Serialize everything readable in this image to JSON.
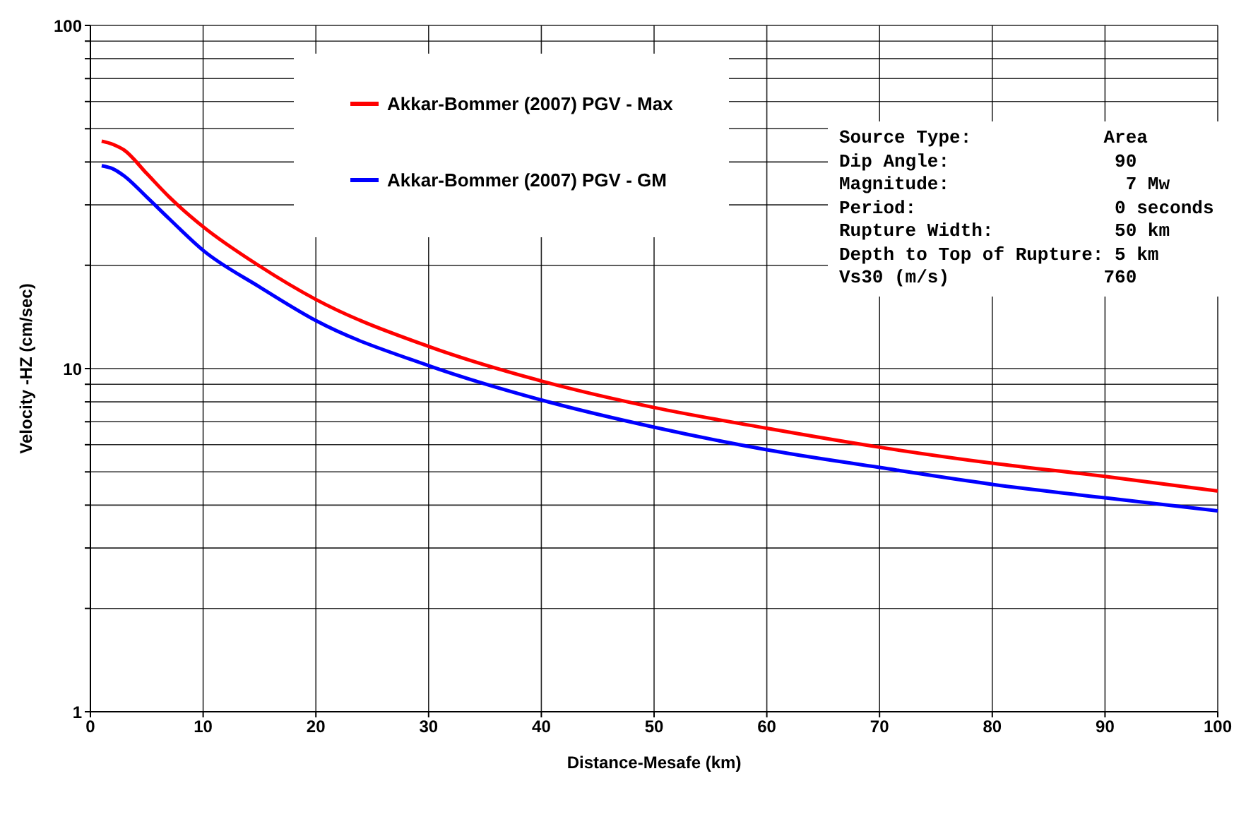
{
  "chart_data": {
    "type": "line",
    "xlabel": "Distance-Mesafe (km)",
    "ylabel": "Velocity -HZ (cm/sec)",
    "x": [
      1,
      2,
      3,
      5,
      7,
      10,
      15,
      20,
      30,
      40,
      50,
      60,
      70,
      80,
      90,
      100
    ],
    "series": [
      {
        "name": "Akkar-Bommer (2007) PGV - Max",
        "color": "#ff0000",
        "values": [
          46,
          45,
          43.3,
          37,
          31.6,
          25.9,
          19.9,
          15.9,
          11.6,
          9.2,
          7.7,
          6.7,
          5.9,
          5.3,
          4.85,
          4.4
        ]
      },
      {
        "name": "Akkar-Bommer (2007) PGV - GM",
        "color": "#0000ff",
        "values": [
          39,
          38.2,
          36.4,
          31.6,
          27.3,
          22.1,
          17.3,
          13.8,
          10.2,
          8.1,
          6.75,
          5.8,
          5.15,
          4.6,
          4.2,
          3.85
        ]
      }
    ],
    "xlim": [
      0,
      100
    ],
    "xticks": [
      0,
      10,
      20,
      30,
      40,
      50,
      60,
      70,
      80,
      90,
      100
    ],
    "ylim": [
      1,
      100
    ],
    "log": true,
    "yticks": [
      1,
      {
        "value": 2,
        "label": null
      },
      {
        "value": 3,
        "label": null
      },
      {
        "value": 4,
        "label": null
      },
      {
        "value": 5,
        "label": null
      },
      {
        "value": 6,
        "label": null
      },
      {
        "value": 7,
        "label": null
      },
      {
        "value": 8,
        "label": null
      },
      {
        "value": 9,
        "label": null
      },
      10,
      {
        "value": 20,
        "label": null
      },
      {
        "value": 30,
        "label": null
      },
      {
        "value": 40,
        "label": null
      },
      {
        "value": 50,
        "label": null
      },
      {
        "value": 60,
        "label": null
      },
      {
        "value": 70,
        "label": null
      },
      {
        "value": 80,
        "label": null
      },
      {
        "value": 90,
        "label": null
      },
      100
    ],
    "grid": true,
    "legend": "top",
    "marker": "none",
    "line_style": "solid",
    "annotations": [
      "Source Type:            Area",
      "Dip Angle:               90",
      "Magnitude:                7 Mw",
      "Period:                  0 seconds",
      "Rupture Width:           50 km",
      "Depth to Top of Rupture: 5 km",
      "Vs30 (m/s)              760"
    ]
  }
}
